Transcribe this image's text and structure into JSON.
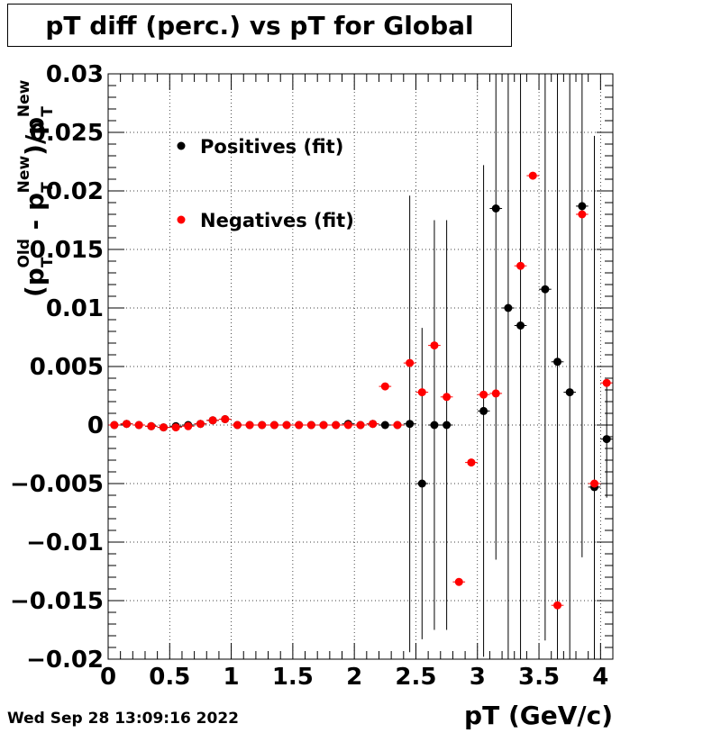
{
  "title": "pT diff (perc.) vs pT for Global",
  "timestamp": "Wed Sep 28 13:09:16 2022",
  "chart_data": {
    "type": "scatter",
    "title": "pT diff (perc.) vs pT for Global",
    "xlabel": "pT (GeV/c)",
    "ylabel_parts": {
      "open": "(p",
      "sub1": "T",
      "sup1": "Old",
      "minus": " - p",
      "sub2": "T",
      "sup2": "New",
      "close": ")/p",
      "sub3": "T",
      "sup3": "New"
    },
    "xlim": [
      0,
      4.1
    ],
    "ylim": [
      -0.02,
      0.03
    ],
    "x_ticks": [
      {
        "v": 0,
        "label": "0"
      },
      {
        "v": 0.5,
        "label": "0.5"
      },
      {
        "v": 1,
        "label": "1"
      },
      {
        "v": 1.5,
        "label": "1.5"
      },
      {
        "v": 2,
        "label": "2"
      },
      {
        "v": 2.5,
        "label": "2.5"
      },
      {
        "v": 3,
        "label": "3"
      },
      {
        "v": 3.5,
        "label": "3.5"
      },
      {
        "v": 4,
        "label": "4"
      }
    ],
    "y_ticks": [
      {
        "v": -0.02,
        "label": "−0.02"
      },
      {
        "v": -0.015,
        "label": "−0.015"
      },
      {
        "v": -0.01,
        "label": "−0.01"
      },
      {
        "v": -0.005,
        "label": "−0.005"
      },
      {
        "v": 0,
        "label": "0"
      },
      {
        "v": 0.005,
        "label": "0.005"
      },
      {
        "v": 0.01,
        "label": "0.01"
      },
      {
        "v": 0.015,
        "label": "0.015"
      },
      {
        "v": 0.02,
        "label": "0.02"
      },
      {
        "v": 0.025,
        "label": "0.025"
      },
      {
        "v": 0.03,
        "label": "0.03"
      }
    ],
    "grid": true,
    "legend_position": "top-left",
    "series": [
      {
        "name": "Positives (fit)",
        "color": "#000000",
        "points": [
          {
            "x": 0.05,
            "y": 0.0
          },
          {
            "x": 0.15,
            "y": 0.0001
          },
          {
            "x": 0.25,
            "y": 0.0
          },
          {
            "x": 0.35,
            "y": -0.0001
          },
          {
            "x": 0.45,
            "y": -0.0002
          },
          {
            "x": 0.55,
            "y": -0.0001
          },
          {
            "x": 0.65,
            "y": 0.0
          },
          {
            "x": 0.75,
            "y": 0.0001
          },
          {
            "x": 0.85,
            "y": 0.0004
          },
          {
            "x": 0.95,
            "y": 0.0005
          },
          {
            "x": 1.05,
            "y": 0.0
          },
          {
            "x": 1.15,
            "y": 0.0
          },
          {
            "x": 1.25,
            "y": 0.0
          },
          {
            "x": 1.35,
            "y": 0.0
          },
          {
            "x": 1.45,
            "y": 0.0
          },
          {
            "x": 1.55,
            "y": 0.0
          },
          {
            "x": 1.65,
            "y": 0.0
          },
          {
            "x": 1.75,
            "y": 0.0
          },
          {
            "x": 1.85,
            "y": 0.0
          },
          {
            "x": 1.95,
            "y": 0.0001
          },
          {
            "x": 2.05,
            "y": 0.0
          },
          {
            "x": 2.15,
            "y": 0.0001
          },
          {
            "x": 2.25,
            "y": 0.0
          },
          {
            "x": 2.35,
            "y": 0.0
          },
          {
            "x": 2.45,
            "y": 0.0001,
            "err": 0.0195
          },
          {
            "x": 2.55,
            "y": -0.005,
            "err": 0.0133
          },
          {
            "x": 2.65,
            "y": 0.0,
            "err": 0.0175
          },
          {
            "x": 2.75,
            "y": 0.0,
            "err": 0.0175
          },
          {
            "x": 3.05,
            "y": 0.0012,
            "err": 0.021
          },
          {
            "x": 3.15,
            "y": 0.0185,
            "err": 0.03
          },
          {
            "x": 3.25,
            "y": 0.01,
            "err": 0.03
          },
          {
            "x": 3.35,
            "y": 0.0085,
            "err": 0.03
          },
          {
            "x": 3.55,
            "y": 0.0116,
            "err": 0.03
          },
          {
            "x": 3.65,
            "y": 0.0054,
            "err": 0.03
          },
          {
            "x": 3.75,
            "y": 0.0028,
            "err": 0.03
          },
          {
            "x": 3.85,
            "y": 0.0187,
            "err": 0.03
          },
          {
            "x": 3.95,
            "y": -0.0053,
            "err": 0.03
          },
          {
            "x": 4.05,
            "y": -0.0012,
            "err": 0.005
          }
        ]
      },
      {
        "name": "Negatives (fit)",
        "color": "#ff0000",
        "points": [
          {
            "x": 0.05,
            "y": 0.0
          },
          {
            "x": 0.15,
            "y": 0.0001
          },
          {
            "x": 0.25,
            "y": 0.0
          },
          {
            "x": 0.35,
            "y": -0.0001
          },
          {
            "x": 0.45,
            "y": -0.0002
          },
          {
            "x": 0.55,
            "y": -0.0002
          },
          {
            "x": 0.65,
            "y": -0.0001
          },
          {
            "x": 0.75,
            "y": 0.0001
          },
          {
            "x": 0.85,
            "y": 0.0004
          },
          {
            "x": 0.95,
            "y": 0.0005
          },
          {
            "x": 1.05,
            "y": 0.0
          },
          {
            "x": 1.15,
            "y": 0.0
          },
          {
            "x": 1.25,
            "y": 0.0
          },
          {
            "x": 1.35,
            "y": 0.0
          },
          {
            "x": 1.45,
            "y": 0.0
          },
          {
            "x": 1.55,
            "y": 0.0
          },
          {
            "x": 1.65,
            "y": 0.0
          },
          {
            "x": 1.75,
            "y": 0.0
          },
          {
            "x": 1.85,
            "y": 0.0
          },
          {
            "x": 1.95,
            "y": 0.0
          },
          {
            "x": 2.05,
            "y": 0.0
          },
          {
            "x": 2.15,
            "y": 0.0001
          },
          {
            "x": 2.25,
            "y": 0.0033
          },
          {
            "x": 2.35,
            "y": 0.0
          },
          {
            "x": 2.45,
            "y": 0.0053
          },
          {
            "x": 2.55,
            "y": 0.0028
          },
          {
            "x": 2.65,
            "y": 0.0068
          },
          {
            "x": 2.75,
            "y": 0.0024
          },
          {
            "x": 2.85,
            "y": -0.0134
          },
          {
            "x": 2.95,
            "y": -0.0032
          },
          {
            "x": 3.05,
            "y": 0.0026
          },
          {
            "x": 3.15,
            "y": 0.0027
          },
          {
            "x": 3.35,
            "y": 0.0136
          },
          {
            "x": 3.45,
            "y": 0.0213
          },
          {
            "x": 3.65,
            "y": -0.0154
          },
          {
            "x": 3.85,
            "y": 0.018
          },
          {
            "x": 3.95,
            "y": -0.005
          },
          {
            "x": 4.05,
            "y": 0.0036
          }
        ]
      }
    ]
  }
}
